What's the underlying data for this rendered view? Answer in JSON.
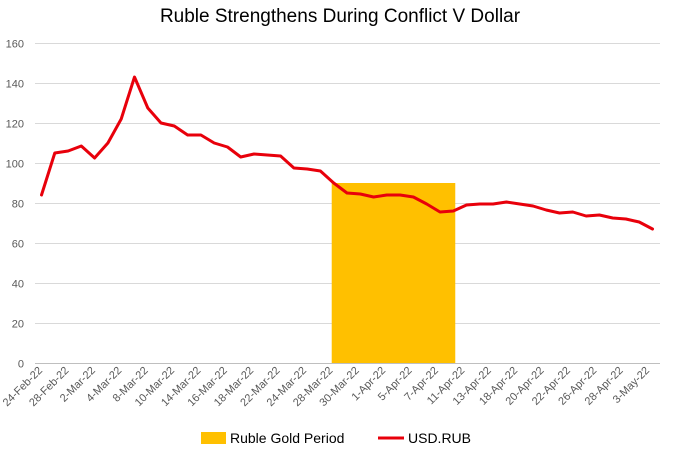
{
  "chart_data": {
    "type": "line",
    "title": "Ruble Strengthens During Conflict V Dollar",
    "xlabel": "",
    "ylabel": "",
    "ylim": [
      0,
      160
    ],
    "yticks": [
      0,
      20,
      40,
      60,
      80,
      100,
      120,
      140,
      160
    ],
    "grid": true,
    "legend_position": "bottom",
    "x_tick_labels": [
      "24-Feb-22",
      "28-Feb-22",
      "2-Mar-22",
      "4-Mar-22",
      "8-Mar-22",
      "10-Mar-22",
      "14-Mar-22",
      "16-Mar-22",
      "18-Mar-22",
      "22-Mar-22",
      "24-Mar-22",
      "28-Mar-22",
      "30-Mar-22",
      "1-Apr-22",
      "5-Apr-22",
      "7-Apr-22",
      "11-Apr-22",
      "13-Apr-22",
      "18-Apr-22",
      "20-Apr-22",
      "22-Apr-22",
      "26-Apr-22",
      "28-Apr-22",
      "3-May-22"
    ],
    "series": [
      {
        "name": "USD.RUB",
        "kind": "line",
        "color": "#e8000b",
        "values": [
          84,
          105,
          106,
          108.5,
          102.5,
          110,
          122,
          143,
          127.5,
          120,
          118.5,
          114,
          114,
          110,
          108,
          103,
          104.5,
          104,
          103.5,
          97.5,
          97,
          96,
          90,
          85,
          84.5,
          83,
          84,
          84,
          83,
          79.5,
          75.5,
          76,
          79,
          79.5,
          79.5,
          80.5,
          79.5,
          78.5,
          76.5,
          75,
          75.5,
          73.5,
          74,
          72.5,
          72,
          70.5,
          67
        ]
      },
      {
        "name": "Ruble Gold Period",
        "kind": "area",
        "color": "#ffc000",
        "value": 90,
        "start_index": 22,
        "end_index": 31
      }
    ]
  }
}
